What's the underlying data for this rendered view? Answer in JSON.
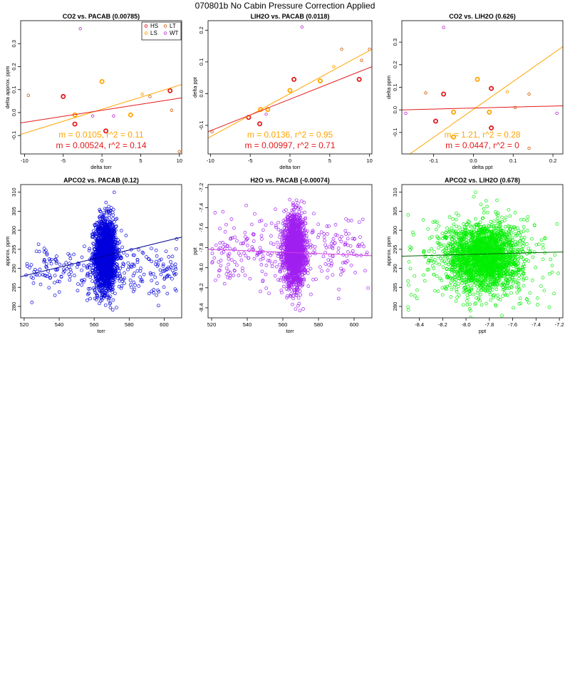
{
  "title": "070801b   No Cabin Pressure Correction Applied",
  "colors": {
    "HS": "#e41a1c",
    "LS": "#ffa500",
    "LT": "#d2691e",
    "WT": "#c040d0",
    "frame": "#000000"
  },
  "legend": {
    "placement": "top-right",
    "entries": [
      "HS",
      "LT",
      "LS",
      "WT"
    ]
  },
  "chart_data": [
    {
      "type": "scatter",
      "title": "CO2 vs. PACAB (0.00785)",
      "xlabel": "delta torr",
      "ylabel": "delta approx. ppm",
      "xlim": [
        -10.5,
        10.3
      ],
      "ylim": [
        -0.18,
        0.4
      ],
      "xticks": [
        -10,
        -5,
        0,
        5,
        10
      ],
      "xtick_labels": [
        "-10",
        "-5",
        "0",
        "5",
        "10"
      ],
      "yticks": [
        -0.1,
        0.0,
        0.1,
        0.2,
        0.3
      ],
      "ytick_labels": [
        "-0.1",
        "0.0",
        "0.1",
        "0.2",
        "0.3"
      ],
      "series": [
        {
          "name": "HS",
          "color": "#e41a1c",
          "bold": true,
          "points": [
            [
              -5,
              0.07
            ],
            [
              -3.5,
              -0.05
            ],
            [
              0.5,
              -0.08
            ],
            [
              8.8,
              0.095
            ]
          ]
        },
        {
          "name": "LS",
          "color": "#ffa500",
          "bold": true,
          "points": [
            [
              -3.5,
              -0.01
            ],
            [
              0,
              0.135
            ],
            [
              3.7,
              -0.01
            ]
          ]
        },
        {
          "name": "LT",
          "color": "#d2691e",
          "bold": false,
          "points": [
            [
              -9.5,
              0.075
            ],
            [
              6.2,
              0.07
            ],
            [
              9,
              0.01
            ],
            [
              10,
              -0.17
            ]
          ]
        },
        {
          "name": "WT",
          "color": "#c040d0",
          "bold": false,
          "points": [
            [
              -2.8,
              0.365
            ],
            [
              -1.2,
              -0.015
            ],
            [
              1.5,
              -0.015
            ]
          ]
        },
        {
          "name": "",
          "color": "#ffa500",
          "bold": false,
          "points": [
            [
              5.2,
              0.08
            ]
          ]
        }
      ],
      "lines": [
        {
          "color": "#ffa500",
          "x": [
            -10.5,
            10.3
          ],
          "y": [
            -0.095,
            0.122
          ]
        },
        {
          "color": "#e41a1c",
          "x": [
            -10.5,
            10.3
          ],
          "y": [
            -0.045,
            0.064
          ]
        }
      ],
      "annotations": [
        {
          "text": "m = 0.0105, r^2 = 0.11",
          "color": "#ffa500"
        },
        {
          "text": "m = 0.00524, r^2 = 0.14",
          "color": "#e41a1c"
        }
      ],
      "legend": true
    },
    {
      "type": "scatter",
      "title": "LIH2O vs. PACAB (0.0118)",
      "xlabel": "delta torr",
      "ylabel": "delta ppt",
      "xlim": [
        -10.3,
        10.3
      ],
      "ylim": [
        -0.19,
        0.23
      ],
      "xticks": [
        -10,
        -5,
        0,
        5,
        10
      ],
      "xtick_labels": [
        "-10",
        "-5",
        "0",
        "5",
        "10"
      ],
      "yticks": [
        -0.1,
        0.0,
        0.1,
        0.2
      ],
      "ytick_labels": [
        "-0.1",
        "0.0",
        "0.1",
        "0.2"
      ],
      "series": [
        {
          "name": "HS",
          "color": "#e41a1c",
          "bold": true,
          "points": [
            [
              -5.2,
              -0.075
            ],
            [
              -3.8,
              -0.095
            ],
            [
              0.5,
              0.045
            ],
            [
              8.7,
              0.045
            ]
          ]
        },
        {
          "name": "LS",
          "color": "#ffa500",
          "bold": true,
          "points": [
            [
              -3.7,
              -0.05
            ],
            [
              -2.8,
              -0.05
            ],
            [
              0,
              0.01
            ],
            [
              3.8,
              0.04
            ]
          ]
        },
        {
          "name": "LT",
          "color": "#d2691e",
          "bold": false,
          "points": [
            [
              -9.8,
              -0.12
            ],
            [
              6.5,
              0.14
            ],
            [
              9,
              0.105
            ],
            [
              10,
              0.14
            ]
          ]
        },
        {
          "name": "WT",
          "color": "#c040d0",
          "bold": false,
          "points": [
            [
              1.5,
              0.21
            ],
            [
              -3,
              -0.065
            ]
          ]
        },
        {
          "name": "",
          "color": "#ffa500",
          "bold": false,
          "points": [
            [
              5.5,
              0.085
            ]
          ]
        }
      ],
      "lines": [
        {
          "color": "#ffa500",
          "x": [
            -10.3,
            10.3
          ],
          "y": [
            -0.14,
            0.14
          ]
        },
        {
          "color": "#e41a1c",
          "x": [
            -10.3,
            10.3
          ],
          "y": [
            -0.12,
            0.085
          ]
        }
      ],
      "annotations": [
        {
          "text": "m = 0.0136, r^2 = 0.95",
          "color": "#ffa500"
        },
        {
          "text": "m = 0.00997, r^2 = 0.71",
          "color": "#e41a1c"
        }
      ],
      "legend": false
    },
    {
      "type": "scatter",
      "title": "CO2 vs. LIH2O (0.626)",
      "xlabel": "delta ppt",
      "ylabel": "delta ppm",
      "xlim": [
        -0.18,
        0.225
      ],
      "ylim": [
        -0.195,
        0.395
      ],
      "xticks": [
        -0.1,
        0.0,
        0.1,
        0.2
      ],
      "xtick_labels": [
        "-0.1",
        "0.0",
        "0.1",
        "0.2"
      ],
      "yticks": [
        -0.1,
        0.0,
        0.1,
        0.2,
        0.3
      ],
      "ytick_labels": [
        "-0.1",
        "0.0",
        "0.1",
        "0.2",
        "0.3"
      ],
      "series": [
        {
          "name": "HS",
          "color": "#e41a1c",
          "bold": true,
          "points": [
            [
              -0.075,
              0.07
            ],
            [
              -0.095,
              -0.05
            ],
            [
              0.045,
              0.095
            ],
            [
              0.045,
              -0.08
            ]
          ]
        },
        {
          "name": "LS",
          "color": "#ffa500",
          "bold": true,
          "points": [
            [
              -0.05,
              -0.01
            ],
            [
              0.01,
              0.135
            ],
            [
              0.04,
              -0.01
            ],
            [
              -0.05,
              -0.12
            ]
          ]
        },
        {
          "name": "LT",
          "color": "#d2691e",
          "bold": false,
          "points": [
            [
              -0.12,
              0.075
            ],
            [
              0.105,
              0.01
            ],
            [
              0.14,
              0.07
            ],
            [
              0.14,
              -0.17
            ]
          ]
        },
        {
          "name": "WT",
          "color": "#c040d0",
          "bold": false,
          "points": [
            [
              -0.075,
              0.365
            ],
            [
              0.21,
              -0.015
            ],
            [
              -0.17,
              -0.015
            ]
          ]
        },
        {
          "name": "",
          "color": "#ffa500",
          "bold": false,
          "points": [
            [
              0.085,
              0.08
            ]
          ]
        }
      ],
      "lines": [
        {
          "color": "#ffa500",
          "x": [
            -0.18,
            0.225
          ],
          "y": [
            -0.22,
            0.28
          ]
        },
        {
          "color": "#e41a1c",
          "x": [
            -0.18,
            0.225
          ],
          "y": [
            0.0,
            0.018
          ]
        }
      ],
      "annotations": [
        {
          "text": "m = 1.21, r^2 = 0.28",
          "color": "#ffa500"
        },
        {
          "text": "m = 0.0447, r^2 = 0",
          "color": "#e41a1c"
        }
      ],
      "legend": false
    },
    {
      "type": "scatter",
      "title": "APCO2 vs. PACAB (0.12)",
      "xlabel": "torr",
      "ylabel": "approx. ppm",
      "xlim": [
        518,
        610
      ],
      "ylim": [
        277,
        312
      ],
      "xticks": [
        520,
        540,
        560,
        580,
        600
      ],
      "xtick_labels": [
        "520",
        "540",
        "560",
        "580",
        "600"
      ],
      "yticks": [
        280,
        285,
        290,
        295,
        300,
        305,
        310
      ],
      "ytick_labels": [
        "280",
        "285",
        "290",
        "295",
        "300",
        "305",
        "310"
      ],
      "color": "#0000dd",
      "cloud": {
        "dense_n": 1800,
        "dense_cx": 566.5,
        "dense_sx": 3.0,
        "dense_cy": 293.5,
        "dense_sy": 4.8,
        "wide_n": 300,
        "wide_xr": [
          520,
          608
        ],
        "wide_cy": 289.5,
        "wide_sy": 3.2
      },
      "lines": [
        {
          "color": "#00008b",
          "x": [
            518,
            610
          ],
          "y": [
            287.8,
            298.2
          ]
        }
      ]
    },
    {
      "type": "scatter",
      "title": "H2O vs. PACAB (-0.00074)",
      "xlabel": "torr",
      "ylabel": "ppt",
      "xlim": [
        518,
        610
      ],
      "ylim": [
        -8.5,
        -7.17
      ],
      "xticks": [
        520,
        540,
        560,
        580,
        600
      ],
      "xtick_labels": [
        "520",
        "540",
        "560",
        "580",
        "600"
      ],
      "yticks": [
        -8.4,
        -8.2,
        -8.0,
        -7.8,
        -7.6,
        -7.4,
        -7.2
      ],
      "ytick_labels": [
        "-8.4",
        "-8.2",
        "-8.0",
        "-7.8",
        "-7.6",
        "-7.4",
        "-7.2"
      ],
      "color": "#a020f0",
      "cloud": {
        "dense_n": 1800,
        "dense_cx": 566.5,
        "dense_sx": 3.0,
        "dense_cy": -7.83,
        "dense_sy": 0.17,
        "wide_n": 300,
        "wide_xr": [
          520,
          608
        ],
        "wide_cy": -7.85,
        "wide_sy": 0.16
      },
      "lines": [
        {
          "color": "#d040e0",
          "x": [
            518,
            610
          ],
          "y": [
            -7.815,
            -7.88
          ]
        }
      ]
    },
    {
      "type": "scatter",
      "title": "APCO2 vs. LIH2O (0.678)",
      "xlabel": "ppt",
      "ylabel": "approx. ppm",
      "xlim": [
        -8.55,
        -7.17
      ],
      "ylim": [
        277,
        312
      ],
      "xticks": [
        -8.4,
        -8.2,
        -8.0,
        -7.8,
        -7.6,
        -7.4,
        -7.2
      ],
      "xtick_labels": [
        "-8.4",
        "-8.2",
        "-8.0",
        "-7.8",
        "-7.6",
        "-7.4",
        "-7.2"
      ],
      "yticks": [
        280,
        285,
        290,
        295,
        300,
        305,
        310
      ],
      "ytick_labels": [
        "280",
        "285",
        "290",
        "295",
        "300",
        "305",
        "310"
      ],
      "color": "#00ee00",
      "cloud": {
        "dense_n": 2200,
        "dense_cx": -7.85,
        "dense_sx": 0.16,
        "dense_cy": 293.0,
        "dense_sy": 4.5,
        "wide_n": 150,
        "wide_xr": [
          -8.5,
          -7.2
        ],
        "wide_cy": 293.0,
        "wide_sy": 6.0
      },
      "lines": [
        {
          "color": "#006400",
          "x": [
            -8.55,
            -7.17
          ],
          "y": [
            293.2,
            294.3
          ]
        }
      ]
    }
  ]
}
